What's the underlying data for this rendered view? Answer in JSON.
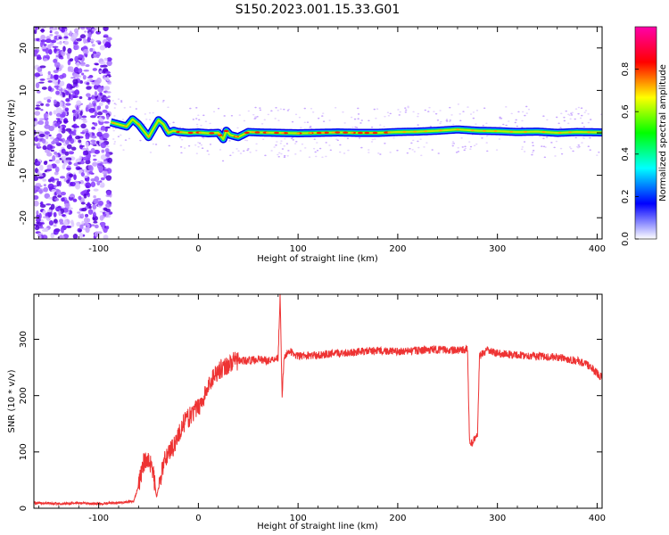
{
  "title": "S150.2023.001.15.33.G01",
  "chart_data": [
    {
      "type": "heatmap",
      "xlabel": "Height of straight line (km)",
      "ylabel": "Frequency (Hz)",
      "xlim": [
        -165,
        405
      ],
      "ylim": [
        -25,
        25
      ],
      "x_ticks": [
        -100,
        0,
        100,
        200,
        300,
        400
      ],
      "x_tick_labels": [
        "-100",
        "0",
        "100",
        "200",
        "300",
        "400"
      ],
      "y_ticks": [
        -20,
        -10,
        0,
        10,
        20
      ],
      "y_tick_labels": [
        "-20",
        "-10",
        "0",
        "10",
        "20"
      ],
      "colorbar": {
        "label": "Normalized spectral amplitude",
        "range": [
          0,
          1
        ],
        "ticks": [
          0.0,
          0.2,
          0.4,
          0.6,
          0.8
        ],
        "tick_labels": [
          "0.0",
          "0.2",
          "0.4",
          "0.6",
          "0.8"
        ],
        "colors": [
          "#ffffff",
          "#0000ff",
          "#00ffff",
          "#00ff00",
          "#ffff00",
          "#ff0000",
          "#ff00aa"
        ]
      },
      "noise_region_x": [
        -165,
        -88
      ],
      "signal_ridge": {
        "x": [
          -88,
          -80,
          -72,
          -66,
          -60,
          -55,
          -50,
          -45,
          -40,
          -35,
          -30,
          -25,
          -20,
          -10,
          0,
          10,
          20,
          25,
          28,
          32,
          40,
          50,
          60,
          80,
          100,
          120,
          140,
          160,
          180,
          200,
          220,
          240,
          260,
          280,
          300,
          320,
          340,
          360,
          380,
          405
        ],
        "frequency": [
          2.5,
          2.0,
          1.5,
          3.2,
          2.0,
          0.5,
          -1.0,
          1.0,
          3.0,
          2.0,
          0.0,
          0.5,
          0.2,
          0.0,
          0.1,
          -0.1,
          0.0,
          -1.5,
          0.5,
          -0.5,
          -1.0,
          0.2,
          0.1,
          0.0,
          -0.1,
          0.0,
          0.1,
          0.0,
          0.0,
          0.2,
          0.3,
          0.5,
          0.8,
          0.5,
          0.4,
          0.2,
          0.3,
          0.0,
          0.2,
          0.1
        ]
      }
    },
    {
      "type": "line",
      "xlabel": "Height of straight line (km)",
      "ylabel": "SNR (10 * v/v)",
      "xlim": [
        -165,
        405
      ],
      "ylim": [
        0,
        380
      ],
      "x_ticks": [
        -100,
        0,
        100,
        200,
        300,
        400
      ],
      "x_tick_labels": [
        "-100",
        "0",
        "100",
        "200",
        "300",
        "400"
      ],
      "y_ticks": [
        0,
        100,
        200,
        300
      ],
      "y_tick_labels": [
        "0",
        "100",
        "200",
        "300"
      ],
      "line_color": "#ee3333",
      "series": [
        {
          "x": [
            -165,
            -140,
            -120,
            -100,
            -80,
            -65,
            -60,
            -55,
            -50,
            -45,
            -42,
            -38,
            -35,
            -30,
            -25,
            -20,
            -15,
            -10,
            -5,
            0,
            5,
            10,
            15,
            20,
            25,
            30,
            35,
            40,
            50,
            60,
            70,
            80,
            82,
            84,
            86,
            90,
            100,
            120,
            140,
            160,
            180,
            200,
            220,
            240,
            260,
            270,
            272,
            274,
            276,
            278,
            280,
            282,
            290,
            300,
            320,
            340,
            360,
            380,
            390,
            400,
            405
          ],
          "y": [
            10,
            8,
            9,
            8,
            10,
            12,
            40,
            80,
            90,
            60,
            20,
            50,
            80,
            100,
            110,
            130,
            150,
            160,
            170,
            180,
            195,
            215,
            235,
            245,
            250,
            255,
            260,
            262,
            262,
            265,
            262,
            268,
            380,
            200,
            265,
            280,
            270,
            272,
            275,
            278,
            280,
            278,
            280,
            282,
            280,
            282,
            120,
            115,
            120,
            125,
            130,
            270,
            280,
            275,
            272,
            270,
            268,
            262,
            255,
            240,
            232
          ]
        }
      ]
    }
  ]
}
